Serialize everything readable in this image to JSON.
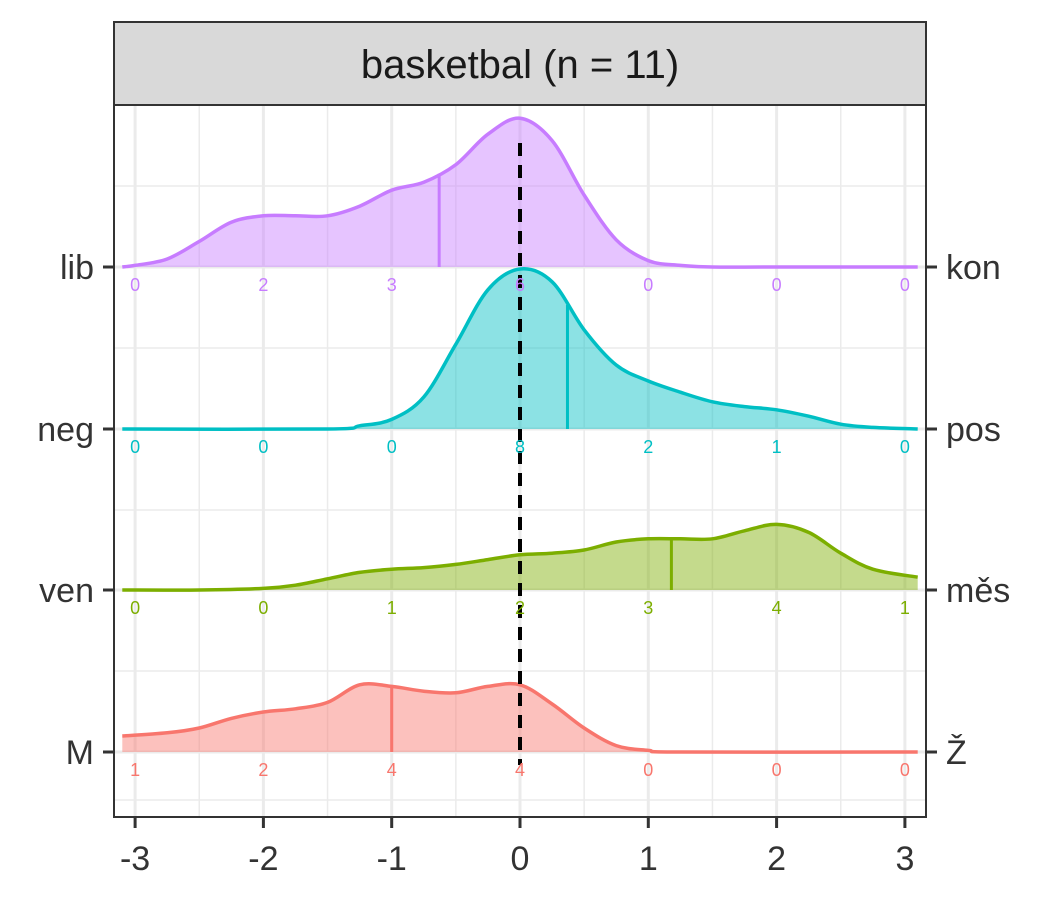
{
  "chart_data": {
    "type": "ridgeline",
    "title": "basketbal (n = 11)",
    "xlim": [
      -3,
      3
    ],
    "x_ticks": [
      "-3",
      "-2",
      "-1",
      "0",
      "1",
      "2",
      "3"
    ],
    "x_tick_values": [
      -3,
      -2,
      -1,
      0,
      1,
      2,
      3
    ],
    "reference_line": 0,
    "grid": true,
    "series": [
      {
        "left_label": "lib",
        "right_label": "kon",
        "color": "#c77cff",
        "counts": [
          0,
          2,
          3,
          6,
          0,
          0,
          0
        ],
        "mean": -0.63,
        "density": [
          [
            -3.1,
            0.0
          ],
          [
            -3.0,
            0.01
          ],
          [
            -2.75,
            0.05
          ],
          [
            -2.5,
            0.16
          ],
          [
            -2.25,
            0.28
          ],
          [
            -2.0,
            0.32
          ],
          [
            -1.75,
            0.32
          ],
          [
            -1.5,
            0.32
          ],
          [
            -1.25,
            0.38
          ],
          [
            -1.0,
            0.48
          ],
          [
            -0.75,
            0.53
          ],
          [
            -0.5,
            0.64
          ],
          [
            -0.25,
            0.83
          ],
          [
            0.0,
            0.93
          ],
          [
            0.25,
            0.79
          ],
          [
            0.5,
            0.45
          ],
          [
            0.75,
            0.17
          ],
          [
            1.0,
            0.04
          ],
          [
            1.25,
            0.01
          ],
          [
            1.5,
            0.0
          ],
          [
            2.0,
            0.0
          ],
          [
            3.1,
            0.0
          ]
        ]
      },
      {
        "left_label": "neg",
        "right_label": "pos",
        "color": "#00bfc4",
        "counts": [
          0,
          0,
          0,
          8,
          2,
          1,
          0
        ],
        "mean": 0.37,
        "density": [
          [
            -3.1,
            0.0
          ],
          [
            -1.5,
            0.0
          ],
          [
            -1.25,
            0.02
          ],
          [
            -1.0,
            0.06
          ],
          [
            -0.75,
            0.2
          ],
          [
            -0.5,
            0.53
          ],
          [
            -0.25,
            0.87
          ],
          [
            0.0,
            1.0
          ],
          [
            0.25,
            0.92
          ],
          [
            0.5,
            0.62
          ],
          [
            0.75,
            0.4
          ],
          [
            1.0,
            0.3
          ],
          [
            1.25,
            0.23
          ],
          [
            1.5,
            0.17
          ],
          [
            1.75,
            0.14
          ],
          [
            2.0,
            0.12
          ],
          [
            2.25,
            0.08
          ],
          [
            2.5,
            0.03
          ],
          [
            2.75,
            0.01
          ],
          [
            3.1,
            0.0
          ]
        ]
      },
      {
        "left_label": "ven",
        "right_label": "měs",
        "color": "#7cae00",
        "counts": [
          0,
          0,
          1,
          2,
          3,
          4,
          1
        ],
        "mean": 1.18,
        "density": [
          [
            -3.1,
            0.0
          ],
          [
            -2.5,
            0.0
          ],
          [
            -2.0,
            0.01
          ],
          [
            -1.75,
            0.03
          ],
          [
            -1.5,
            0.07
          ],
          [
            -1.25,
            0.11
          ],
          [
            -1.0,
            0.13
          ],
          [
            -0.75,
            0.14
          ],
          [
            -0.5,
            0.16
          ],
          [
            -0.25,
            0.19
          ],
          [
            0.0,
            0.22
          ],
          [
            0.25,
            0.23
          ],
          [
            0.5,
            0.25
          ],
          [
            0.75,
            0.3
          ],
          [
            1.0,
            0.32
          ],
          [
            1.25,
            0.32
          ],
          [
            1.5,
            0.32
          ],
          [
            1.75,
            0.37
          ],
          [
            2.0,
            0.41
          ],
          [
            2.25,
            0.36
          ],
          [
            2.5,
            0.23
          ],
          [
            2.75,
            0.13
          ],
          [
            3.1,
            0.08
          ]
        ]
      },
      {
        "left_label": "M",
        "right_label": "Ž",
        "color": "#f8766d",
        "counts": [
          1,
          2,
          4,
          4,
          0,
          0,
          0
        ],
        "mean": -1.0,
        "density": [
          [
            -3.1,
            0.1
          ],
          [
            -2.75,
            0.12
          ],
          [
            -2.5,
            0.15
          ],
          [
            -2.25,
            0.21
          ],
          [
            -2.0,
            0.25
          ],
          [
            -1.75,
            0.27
          ],
          [
            -1.5,
            0.31
          ],
          [
            -1.25,
            0.42
          ],
          [
            -1.0,
            0.41
          ],
          [
            -0.75,
            0.38
          ],
          [
            -0.5,
            0.37
          ],
          [
            -0.25,
            0.41
          ],
          [
            0.0,
            0.42
          ],
          [
            0.25,
            0.3
          ],
          [
            0.5,
            0.15
          ],
          [
            0.75,
            0.04
          ],
          [
            1.0,
            0.01
          ],
          [
            1.25,
            0.0
          ],
          [
            3.1,
            0.0
          ]
        ]
      }
    ]
  }
}
